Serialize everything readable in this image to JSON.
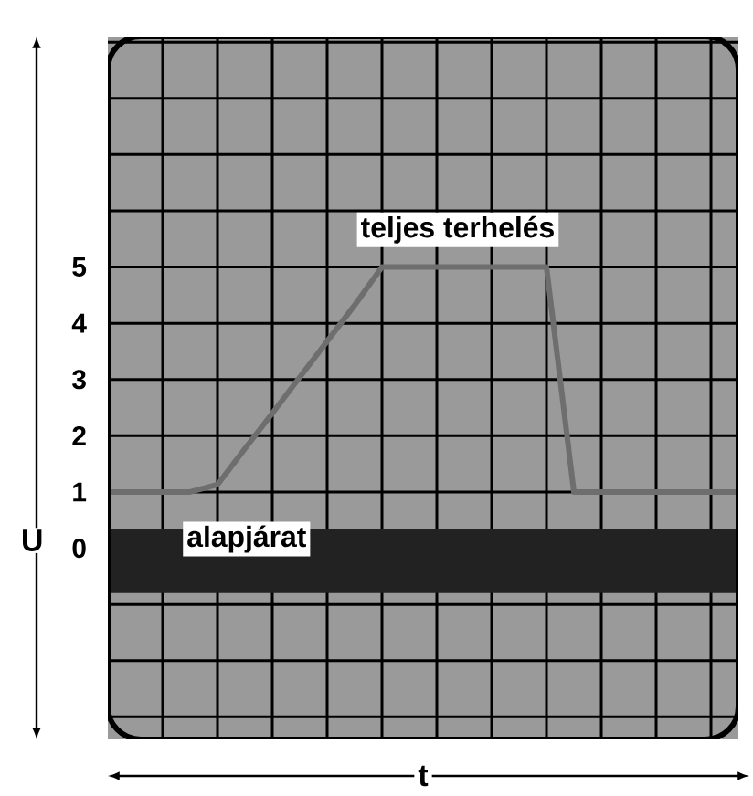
{
  "chart_data": {
    "type": "line",
    "xlabel": "t",
    "ylabel": "U",
    "categories": [
      null,
      null,
      null,
      null,
      null,
      null,
      null,
      null,
      null,
      null,
      null,
      null,
      null,
      null,
      null,
      null,
      null,
      null,
      null,
      null,
      null,
      null,
      null,
      null
    ],
    "series": [
      {
        "color": "#6e6e6e",
        "values": [
          1,
          1,
          1,
          1,
          1.13,
          1.77,
          2.4,
          3.04,
          3.68,
          4.32,
          5,
          5,
          5,
          5,
          5,
          5,
          5,
          1,
          1,
          1,
          1,
          1,
          1,
          1
        ]
      }
    ],
    "ylim": [
      -3.4,
      9.1
    ],
    "yticks": [
      {
        "value": -3,
        "label": null
      },
      {
        "value": -2,
        "label": null
      },
      {
        "value": -1,
        "label": null
      },
      0,
      1,
      2,
      3,
      4,
      5,
      {
        "value": 6,
        "label": null
      },
      {
        "value": 7,
        "label": null
      },
      {
        "value": 8,
        "label": null
      },
      {
        "value": 9,
        "label": null
      }
    ],
    "tick_labels": "y",
    "grid": true,
    "bands": [
      {
        "axis": "y",
        "from": -0.8,
        "to": 0.35,
        "color": "#222222"
      }
    ],
    "annotations": [
      "teljes terhelés",
      "alapjárat"
    ]
  }
}
